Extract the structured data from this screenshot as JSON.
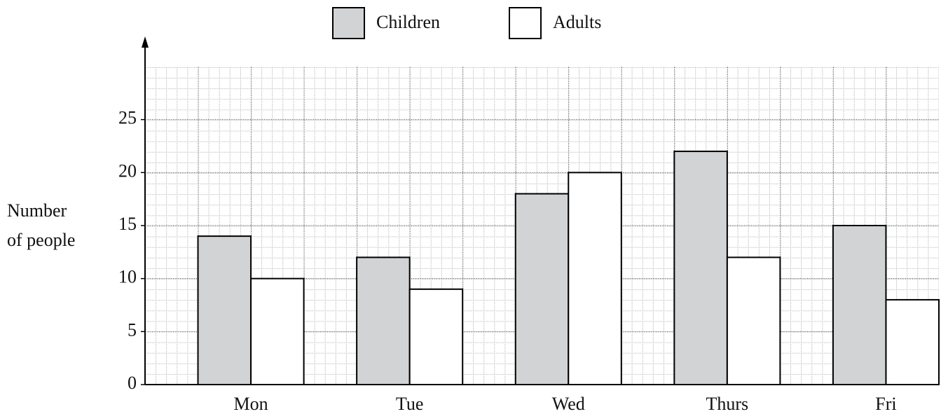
{
  "chart_data": {
    "type": "bar",
    "categories": [
      "Mon",
      "Tue",
      "Wed",
      "Thurs",
      "Fri"
    ],
    "series": [
      {
        "name": "Children",
        "color": "#d1d3d4",
        "values": [
          14,
          12,
          18,
          22,
          15
        ]
      },
      {
        "name": "Adults",
        "color": "#ffffff",
        "values": [
          10,
          9,
          20,
          12,
          8
        ]
      }
    ],
    "ylabel": [
      "Number",
      "of people"
    ],
    "ylim": [
      0,
      30
    ],
    "yticks": [
      0,
      5,
      10,
      15,
      20,
      25
    ],
    "grid": true
  }
}
